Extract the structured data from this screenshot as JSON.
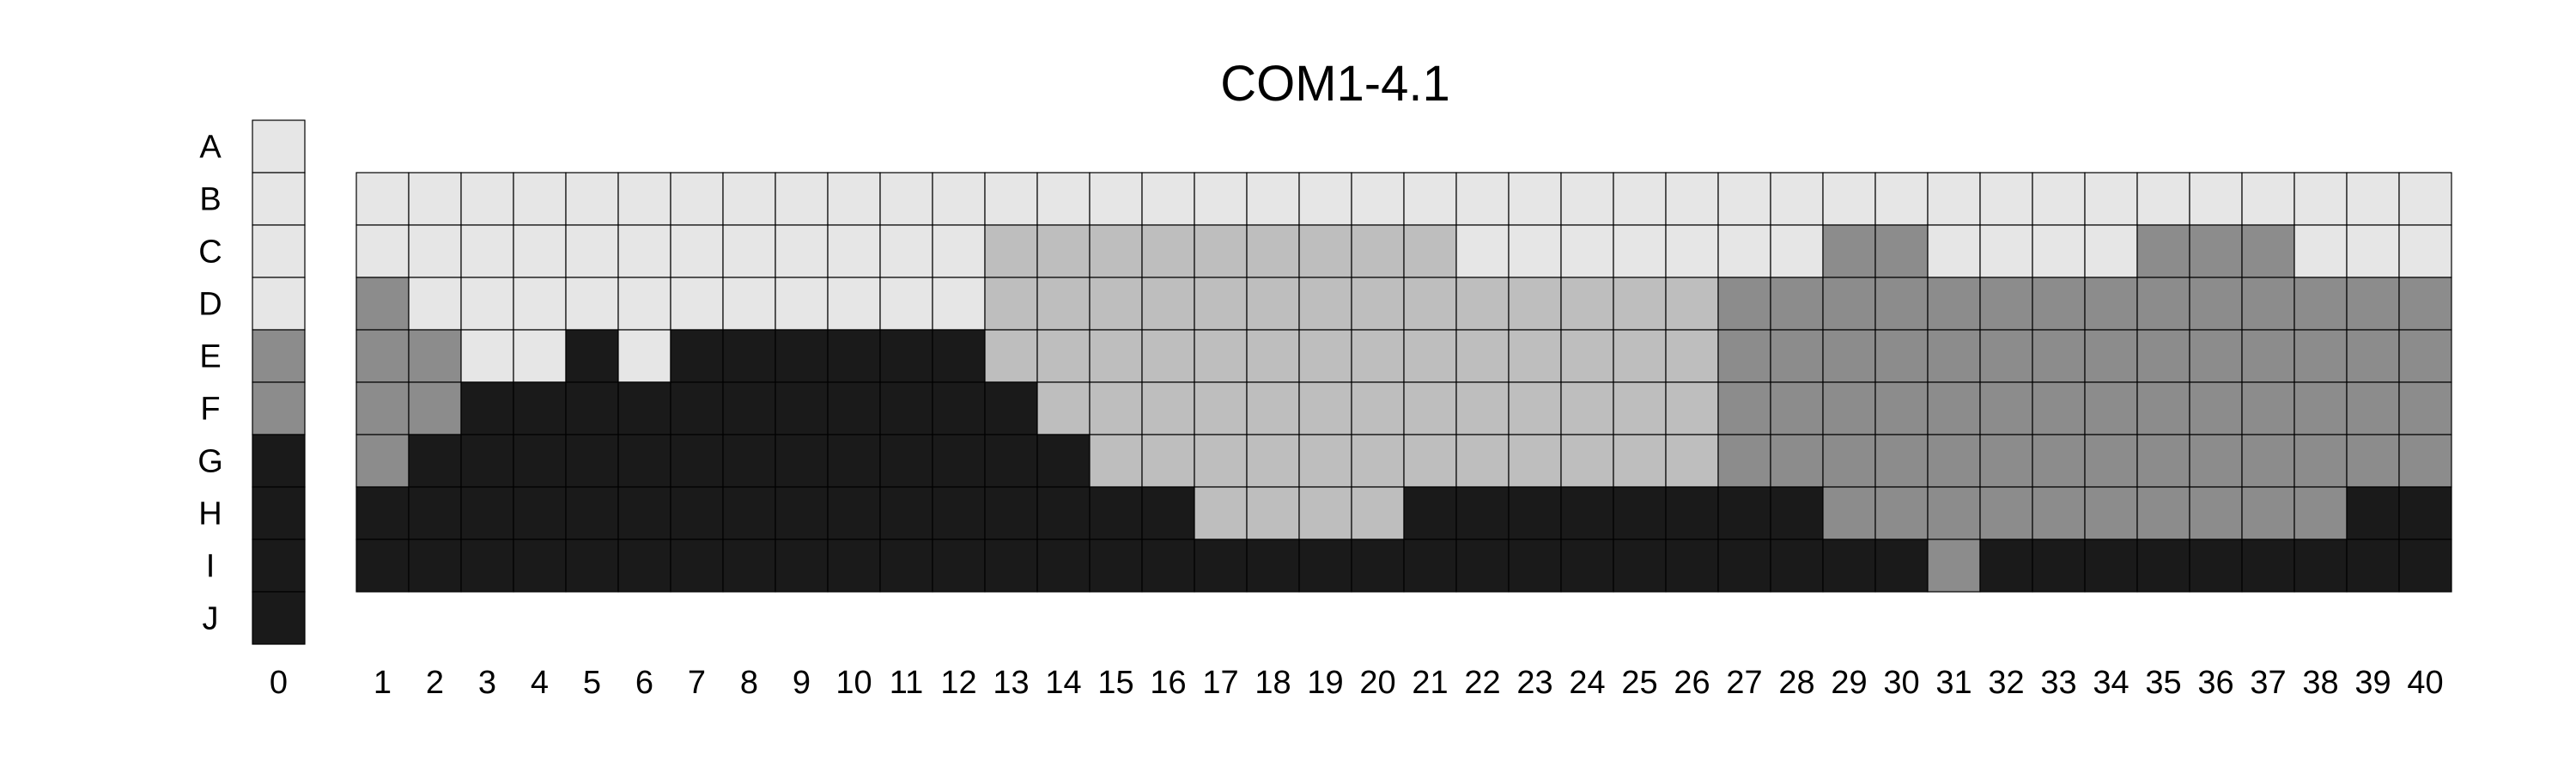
{
  "chart_data": {
    "type": "heatmap",
    "title": "COM1-4.1",
    "rows": [
      "A",
      "B",
      "C",
      "D",
      "E",
      "F",
      "G",
      "H",
      "I",
      "J"
    ],
    "columns": [
      "1",
      "2",
      "3",
      "4",
      "5",
      "6",
      "7",
      "8",
      "9",
      "10",
      "11",
      "12",
      "13",
      "14",
      "15",
      "16",
      "17",
      "18",
      "19",
      "20",
      "21",
      "22",
      "23",
      "24",
      "25",
      "26",
      "27",
      "28",
      "29",
      "30",
      "31",
      "32",
      "33",
      "34",
      "35",
      "36",
      "37",
      "38",
      "39",
      "40"
    ],
    "reference_column": {
      "label": "0",
      "values": [
        0,
        0,
        0,
        0,
        2,
        2,
        3,
        3,
        3,
        3
      ]
    },
    "levels": [
      {
        "value": 0,
        "color": "#e6e6e6"
      },
      {
        "value": 1,
        "color": "#bebebe"
      },
      {
        "value": 2,
        "color": "#8c8c8c"
      },
      {
        "value": 3,
        "color": "#1a1a1a"
      }
    ],
    "grid_rows": [
      "B",
      "C",
      "D",
      "E",
      "F",
      "G",
      "H",
      "I"
    ],
    "values": [
      [
        0,
        0,
        0,
        0,
        0,
        0,
        0,
        0,
        0,
        0,
        0,
        0,
        0,
        0,
        0,
        0,
        0,
        0,
        0,
        0,
        0,
        0,
        0,
        0,
        0,
        0,
        0,
        0,
        0,
        0,
        0,
        0,
        0,
        0,
        0,
        0,
        0,
        0,
        0,
        0
      ],
      [
        0,
        0,
        0,
        0,
        0,
        0,
        0,
        0,
        0,
        0,
        0,
        0,
        1,
        1,
        1,
        1,
        1,
        1,
        1,
        1,
        1,
        0,
        0,
        0,
        0,
        0,
        0,
        0,
        2,
        2,
        0,
        0,
        0,
        0,
        2,
        2,
        2,
        0,
        0,
        0
      ],
      [
        2,
        0,
        0,
        0,
        0,
        0,
        0,
        0,
        0,
        0,
        0,
        0,
        1,
        1,
        1,
        1,
        1,
        1,
        1,
        1,
        1,
        1,
        1,
        1,
        1,
        1,
        2,
        2,
        2,
        2,
        2,
        2,
        2,
        2,
        2,
        2,
        2,
        2,
        2,
        2
      ],
      [
        2,
        2,
        0,
        0,
        3,
        0,
        3,
        3,
        3,
        3,
        3,
        3,
        1,
        1,
        1,
        1,
        1,
        1,
        1,
        1,
        1,
        1,
        1,
        1,
        1,
        1,
        2,
        2,
        2,
        2,
        2,
        2,
        2,
        2,
        2,
        2,
        2,
        2,
        2,
        2
      ],
      [
        2,
        2,
        3,
        3,
        3,
        3,
        3,
        3,
        3,
        3,
        3,
        3,
        3,
        1,
        1,
        1,
        1,
        1,
        1,
        1,
        1,
        1,
        1,
        1,
        1,
        1,
        2,
        2,
        2,
        2,
        2,
        2,
        2,
        2,
        2,
        2,
        2,
        2,
        2,
        2
      ],
      [
        2,
        3,
        3,
        3,
        3,
        3,
        3,
        3,
        3,
        3,
        3,
        3,
        3,
        3,
        1,
        1,
        1,
        1,
        1,
        1,
        1,
        1,
        1,
        1,
        1,
        1,
        2,
        2,
        2,
        2,
        2,
        2,
        2,
        2,
        2,
        2,
        2,
        2,
        2,
        2
      ],
      [
        3,
        3,
        3,
        3,
        3,
        3,
        3,
        3,
        3,
        3,
        3,
        3,
        3,
        3,
        3,
        3,
        1,
        1,
        1,
        1,
        3,
        3,
        3,
        3,
        3,
        3,
        3,
        3,
        2,
        2,
        2,
        2,
        2,
        2,
        2,
        2,
        2,
        2,
        3,
        3
      ],
      [
        3,
        3,
        3,
        3,
        3,
        3,
        3,
        3,
        3,
        3,
        3,
        3,
        3,
        3,
        3,
        3,
        3,
        3,
        3,
        3,
        3,
        3,
        3,
        3,
        3,
        3,
        3,
        3,
        3,
        3,
        2,
        3,
        3,
        3,
        3,
        3,
        3,
        3,
        3,
        3
      ]
    ]
  }
}
